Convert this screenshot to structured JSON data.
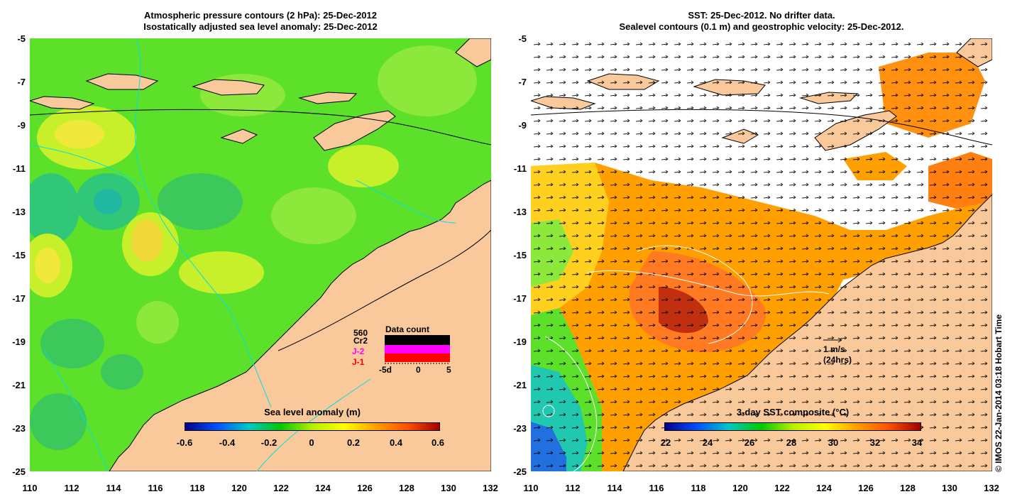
{
  "left": {
    "title_line1": "Atmospheric pressure contours (2 hPa): 25-Dec-2012",
    "title_line2": "Isostatically adjusted sea level anomaly: 25-Dec-2012",
    "colorbar_title": "Sea level anomaly (m)",
    "colorbar_ticks": [
      "-0.6",
      "-0.4",
      "-0.2",
      "0",
      "0.2",
      "0.4",
      "0.6"
    ],
    "data_count": {
      "title": "Data count",
      "max_label": "560",
      "missions": [
        {
          "name": "Cr2",
          "color": "#000000"
        },
        {
          "name": "J-2",
          "color": "#ff00ff"
        },
        {
          "name": "J-1",
          "color": "#ff0000"
        }
      ],
      "x_ticks": [
        "-5d",
        "0",
        "5"
      ]
    }
  },
  "right": {
    "title_line1": "SST: 25-Dec-2012. No drifter data.",
    "title_line2": "Sealevel contours (0.1 m) and geostrophic velocity: 25-Dec-2012.",
    "colorbar_title": "3-day SST composite (°C)",
    "colorbar_ticks": [
      "22",
      "24",
      "26",
      "28",
      "30",
      "32",
      "34"
    ],
    "scale_label_1": "1 m/s",
    "scale_label_2": "(24hrs)"
  },
  "axes": {
    "y_ticks": [
      "-5",
      "-7",
      "-9",
      "-11",
      "-13",
      "-15",
      "-17",
      "-19",
      "-21",
      "-23",
      "-25"
    ],
    "x_ticks": [
      "110",
      "112",
      "114",
      "116",
      "118",
      "120",
      "122",
      "124",
      "126",
      "128",
      "130",
      "132"
    ]
  },
  "credit": "© IMOS 22-Jan-2014 03:18 Hobart Time",
  "colors": {
    "land": "#f9c89b",
    "sla_scale": [
      "#00008b",
      "#0050ff",
      "#00c8c8",
      "#00c800",
      "#b4f000",
      "#ffff00",
      "#ffa000",
      "#ff5000",
      "#a00000"
    ],
    "sst_scale": [
      "#00008b",
      "#0050ff",
      "#00c8c8",
      "#00c800",
      "#b4f000",
      "#ffff00",
      "#ffa000",
      "#ff5000",
      "#a00000"
    ]
  }
}
